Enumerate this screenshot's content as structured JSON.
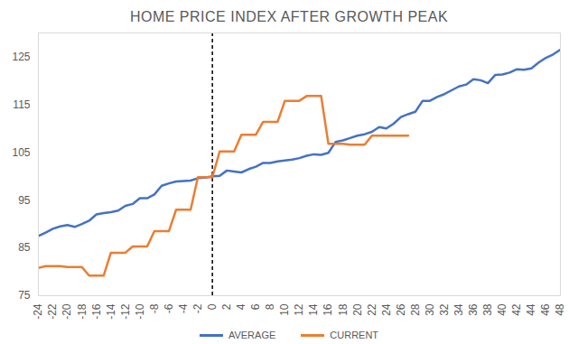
{
  "chart_data": {
    "type": "line",
    "title": "HOME PRICE INDEX AFTER GROWTH PEAK",
    "x": [
      -24,
      -23,
      -22,
      -21,
      -20,
      -19,
      -18,
      -17,
      -16,
      -15,
      -14,
      -13,
      -12,
      -11,
      -10,
      -9,
      -8,
      -7,
      -6,
      -5,
      -4,
      -3,
      -2,
      -1,
      0,
      1,
      2,
      3,
      4,
      5,
      6,
      7,
      8,
      9,
      10,
      11,
      12,
      13,
      14,
      15,
      16,
      17,
      18,
      19,
      20,
      21,
      22,
      23,
      24,
      25,
      26,
      27,
      28,
      29,
      30,
      31,
      32,
      33,
      34,
      35,
      36,
      37,
      38,
      39,
      40,
      41,
      42,
      43,
      44,
      45,
      46,
      47,
      48
    ],
    "series": [
      {
        "name": "AVERAGE",
        "color": "#4472c4",
        "values": [
          87.5,
          88.2,
          89,
          89.5,
          89.8,
          89.4,
          90,
          90.7,
          92,
          92.3,
          92.5,
          92.8,
          93.8,
          94.2,
          95.4,
          95.4,
          96.2,
          98,
          98.5,
          98.9,
          99,
          99.1,
          99.6,
          99.7,
          100,
          100.1,
          101.2,
          101,
          100.8,
          101.5,
          102,
          102.8,
          102.8,
          103.1,
          103.3,
          103.5,
          103.8,
          104.3,
          104.6,
          104.5,
          104.9,
          107.2,
          107.5,
          108,
          108.5,
          108.8,
          109.3,
          110.3,
          110,
          111,
          112.4,
          113,
          113.5,
          115.8,
          115.8,
          116.6,
          117.2,
          118,
          118.8,
          119.2,
          120.3,
          120.1,
          119.5,
          121.2,
          121.3,
          121.7,
          122.4,
          122.3,
          122.6,
          123.8,
          124.8,
          125.5,
          126.5
        ]
      },
      {
        "name": "CURRENT",
        "color": "#ed7d31",
        "values": [
          80.8,
          81.2,
          81.2,
          81.2,
          81,
          81,
          81,
          79.2,
          79.2,
          79.2,
          84,
          84,
          84,
          85.3,
          85.3,
          85.3,
          88.5,
          88.5,
          88.5,
          93,
          93,
          93,
          99.8,
          99.8,
          99.8,
          105.2,
          105.2,
          105.2,
          108.7,
          108.7,
          108.7,
          111.4,
          111.4,
          111.4,
          115.8,
          115.8,
          115.8,
          116.8,
          116.8,
          116.8,
          106.8,
          106.8,
          106.8,
          106.6,
          106.6,
          106.6,
          108.5,
          108.5,
          108.5,
          108.5,
          108.5,
          108.5,
          null,
          null,
          null,
          null,
          null,
          null,
          null,
          null,
          null,
          null,
          null,
          null,
          null,
          null,
          null,
          null,
          null,
          null,
          null,
          null,
          null
        ]
      }
    ],
    "reference_line_x": 0,
    "xlim": [
      -24,
      48
    ],
    "xticks": [
      -24,
      -22,
      -20,
      -18,
      -16,
      -14,
      -12,
      -10,
      -8,
      -6,
      -4,
      -2,
      0,
      2,
      4,
      6,
      8,
      10,
      12,
      14,
      16,
      18,
      20,
      22,
      24,
      26,
      28,
      30,
      32,
      34,
      36,
      38,
      40,
      42,
      44,
      46,
      48
    ],
    "ylim": [
      75,
      130
    ],
    "yticks": [
      75,
      85,
      95,
      105,
      115,
      125
    ],
    "grid": false,
    "legend": "bottom"
  }
}
